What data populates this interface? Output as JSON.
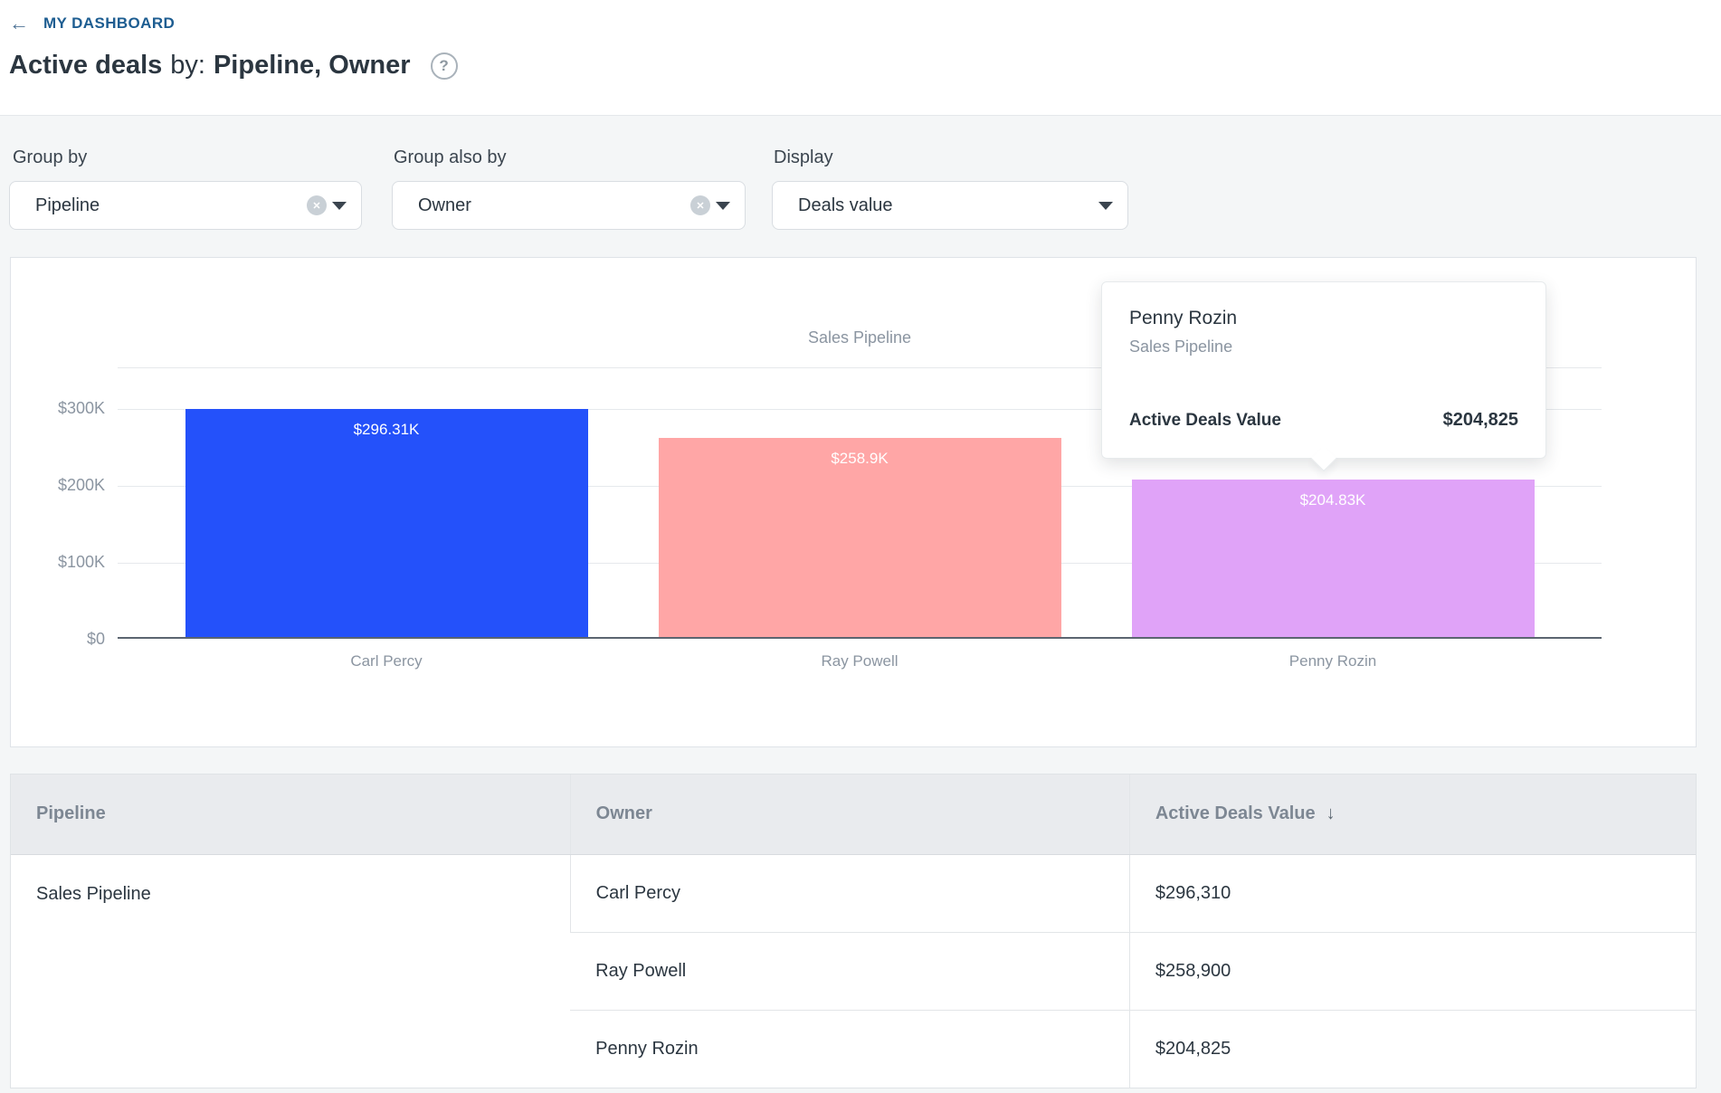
{
  "header": {
    "back_arrow": "←",
    "breadcrumb": "MY DASHBOARD",
    "title_bold": "Active deals",
    "title_by": "by:",
    "title_groups": "Pipeline, Owner",
    "help_glyph": "?"
  },
  "filters": {
    "group_by": {
      "label": "Group by",
      "value": "Pipeline",
      "clear_glyph": "✕"
    },
    "group_also_by": {
      "label": "Group also by",
      "value": "Owner",
      "clear_glyph": "✕"
    },
    "display": {
      "label": "Display",
      "value": "Deals value"
    }
  },
  "chart_data": {
    "type": "bar",
    "title": "Sales Pipeline",
    "categories": [
      "Carl Percy",
      "Ray Powell",
      "Penny Rozin"
    ],
    "values": [
      296310,
      258900,
      204825
    ],
    "bar_labels": [
      "$296.31K",
      "$258.9K",
      "$204.83K"
    ],
    "bar_colors": [
      "#2451fa",
      "#ffa6a6",
      "#e0a3f8"
    ],
    "ytick_labels": [
      "$0",
      "$100K",
      "$200K",
      "$300K"
    ],
    "ytick_values": [
      0,
      100000,
      200000,
      300000
    ],
    "ylim": [
      0,
      300000
    ],
    "grid": true,
    "xlabel": "",
    "ylabel": ""
  },
  "tooltip": {
    "name": "Penny Rozin",
    "subtitle": "Sales Pipeline",
    "metric_label": "Active Deals Value",
    "metric_value": "$204,825"
  },
  "table": {
    "columns": [
      "Pipeline",
      "Owner",
      "Active Deals Value"
    ],
    "sort_glyph": "↓",
    "pipeline": "Sales Pipeline",
    "rows": [
      {
        "owner": "Carl Percy",
        "value": "$296,310"
      },
      {
        "owner": "Ray Powell",
        "value": "$258,900"
      },
      {
        "owner": "Penny Rozin",
        "value": "$204,825"
      }
    ]
  }
}
